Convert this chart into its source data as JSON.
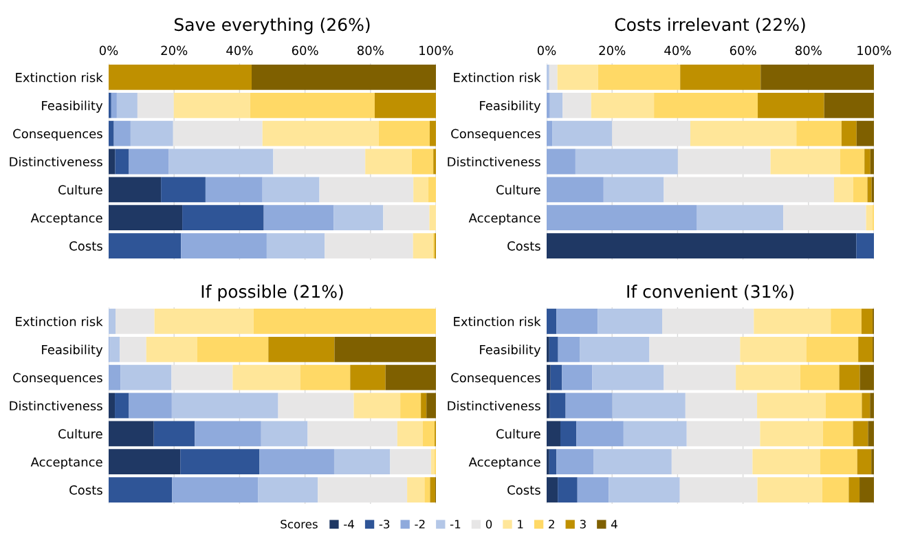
{
  "chart_data": [
    {
      "type": "bar",
      "title": "Save everything (26%)",
      "orientation": "horizontal",
      "stacked": true,
      "grid": "x",
      "legend": "bottom",
      "legend_title": "Scores",
      "categories": [
        "Extinction risk",
        "Feasibility",
        "Consequences",
        "Distinctiveness",
        "Culture",
        "Acceptance",
        "Costs"
      ],
      "xlim": [
        0,
        100
      ],
      "xticks": [
        {
          "value": 0,
          "label": "0%"
        },
        {
          "value": 20,
          "label": "20%"
        },
        {
          "value": 40,
          "label": "40%"
        },
        {
          "value": 60,
          "label": "60%"
        },
        {
          "value": 80,
          "label": "80%"
        },
        {
          "value": 100,
          "label": "100%"
        }
      ],
      "series": [
        {
          "name": "-4",
          "color": "#1f3864",
          "values": [
            0,
            0,
            0,
            2.0,
            16.0,
            22.5,
            0
          ]
        },
        {
          "name": "-3",
          "color": "#2f5597",
          "values": [
            0,
            0.8,
            1.6,
            4.2,
            13.6,
            24.9,
            22.1
          ]
        },
        {
          "name": "-2",
          "color": "#8faadc",
          "values": [
            0,
            1.7,
            5.1,
            12.2,
            17.4,
            21.4,
            26.2
          ]
        },
        {
          "name": "-1",
          "color": "#b4c7e7",
          "values": [
            0,
            6.3,
            13.0,
            31.9,
            17.4,
            15.1,
            17.7
          ]
        },
        {
          "name": "0",
          "color": "#e7e6e6",
          "values": [
            0,
            11.1,
            27.3,
            28.1,
            28.7,
            14.1,
            27.0
          ]
        },
        {
          "name": "1",
          "color": "#ffe699",
          "values": [
            0,
            23.3,
            35.5,
            14.2,
            4.6,
            2.0,
            6.1
          ]
        },
        {
          "name": "2",
          "color": "#ffd966",
          "values": [
            0,
            38.1,
            15.6,
            6.6,
            2.3,
            0,
            0.5
          ]
        },
        {
          "name": "3",
          "color": "#bf9000",
          "values": [
            43.7,
            18.7,
            1.9,
            0.8,
            0,
            0,
            0.4
          ]
        },
        {
          "name": "4",
          "color": "#7f6000",
          "values": [
            56.3,
            0,
            0,
            0,
            0,
            0,
            0
          ]
        }
      ]
    },
    {
      "type": "bar",
      "title": "Costs irrelevant (22%)",
      "orientation": "horizontal",
      "stacked": true,
      "grid": "x",
      "categories": [
        "Extinction risk",
        "Feasibility",
        "Consequences",
        "Distinctiveness",
        "Culture",
        "Acceptance",
        "Costs"
      ],
      "xlim": [
        0,
        100
      ],
      "xticks": [
        {
          "value": 0,
          "label": "0%"
        },
        {
          "value": 20,
          "label": "20%"
        },
        {
          "value": 40,
          "label": "40%"
        },
        {
          "value": 60,
          "label": "60%"
        },
        {
          "value": 80,
          "label": "80%"
        },
        {
          "value": 100,
          "label": "100%"
        }
      ],
      "series": [
        {
          "name": "-4",
          "color": "#1f3864",
          "values": [
            0,
            0,
            0,
            0,
            0,
            0,
            94.6
          ]
        },
        {
          "name": "-3",
          "color": "#2f5597",
          "values": [
            0,
            0,
            0,
            0,
            0,
            0,
            5.4
          ]
        },
        {
          "name": "-2",
          "color": "#8faadc",
          "values": [
            0,
            1.0,
            1.7,
            8.8,
            17.4,
            45.8,
            0
          ]
        },
        {
          "name": "-1",
          "color": "#b4c7e7",
          "values": [
            0.8,
            3.9,
            18.3,
            31.3,
            18.4,
            26.5,
            0
          ]
        },
        {
          "name": "0",
          "color": "#e7e6e6",
          "values": [
            2.5,
            8.7,
            23.9,
            28.3,
            52.0,
            25.3,
            0
          ]
        },
        {
          "name": "1",
          "color": "#ffe699",
          "values": [
            12.4,
            19.2,
            32.4,
            21.3,
            5.8,
            2.0,
            0
          ]
        },
        {
          "name": "2",
          "color": "#ffd966",
          "values": [
            25.1,
            31.7,
            13.8,
            7.4,
            4.4,
            0.4,
            0
          ]
        },
        {
          "name": "3",
          "color": "#bf9000",
          "values": [
            24.6,
            20.3,
            4.6,
            1.8,
            1.3,
            0,
            0
          ]
        },
        {
          "name": "4",
          "color": "#7f6000",
          "values": [
            34.6,
            15.2,
            5.3,
            1.1,
            0.7,
            0,
            0
          ]
        }
      ]
    },
    {
      "type": "bar",
      "title": "If possible (21%)",
      "orientation": "horizontal",
      "stacked": true,
      "grid": "x",
      "tick_labels": "y",
      "categories": [
        "Extinction risk",
        "Feasibility",
        "Consequences",
        "Distinctiveness",
        "Culture",
        "Acceptance",
        "Costs"
      ],
      "xlim": [
        0,
        100
      ],
      "xticks": [
        {
          "value": 0,
          "label": null
        },
        {
          "value": 20,
          "label": null
        },
        {
          "value": 40,
          "label": null
        },
        {
          "value": 60,
          "label": null
        },
        {
          "value": 80,
          "label": null
        },
        {
          "value": 100,
          "label": null
        }
      ],
      "series": [
        {
          "name": "-4",
          "color": "#1f3864",
          "values": [
            0,
            0,
            0,
            1.9,
            13.8,
            21.9,
            0
          ]
        },
        {
          "name": "-3",
          "color": "#2f5597",
          "values": [
            0,
            0,
            0,
            4.3,
            12.5,
            24.2,
            19.4
          ]
        },
        {
          "name": "-2",
          "color": "#8faadc",
          "values": [
            0,
            0.3,
            3.6,
            13.1,
            20.3,
            22.8,
            26.3
          ]
        },
        {
          "name": "-1",
          "color": "#b4c7e7",
          "values": [
            2.1,
            3.1,
            15.6,
            32.5,
            14.2,
            17.1,
            18.2
          ]
        },
        {
          "name": "0",
          "color": "#e7e6e6",
          "values": [
            11.9,
            8.1,
            18.7,
            23.1,
            27.4,
            12.5,
            27.3
          ]
        },
        {
          "name": "1",
          "color": "#ffe699",
          "values": [
            30.3,
            15.6,
            20.6,
            14.2,
            7.8,
            1.1,
            5.3
          ]
        },
        {
          "name": "2",
          "color": "#ffd966",
          "values": [
            55.7,
            21.7,
            15.3,
            6.3,
            3.6,
            0.4,
            1.7
          ]
        },
        {
          "name": "3",
          "color": "#bf9000",
          "values": [
            0,
            20.2,
            10.8,
            1.7,
            0.4,
            0,
            1.6
          ]
        },
        {
          "name": "4",
          "color": "#7f6000",
          "values": [
            0,
            31.0,
            15.4,
            2.9,
            0,
            0,
            0.2
          ]
        }
      ]
    },
    {
      "type": "bar",
      "title": "If convenient (31%)",
      "orientation": "horizontal",
      "stacked": true,
      "grid": "x",
      "tick_labels": "y",
      "categories": [
        "Extinction risk",
        "Feasibility",
        "Consequences",
        "Distinctiveness",
        "Culture",
        "Acceptance",
        "Costs"
      ],
      "xlim": [
        0,
        100
      ],
      "xticks": [
        {
          "value": 0,
          "label": null
        },
        {
          "value": 20,
          "label": null
        },
        {
          "value": 40,
          "label": null
        },
        {
          "value": 60,
          "label": null
        },
        {
          "value": 80,
          "label": null
        },
        {
          "value": 100,
          "label": null
        }
      ],
      "series": [
        {
          "name": "-4",
          "color": "#1f3864",
          "values": [
            0,
            0.8,
            1.2,
            1.0,
            4.2,
            0.8,
            3.4
          ]
        },
        {
          "name": "-3",
          "color": "#2f5597",
          "values": [
            3.0,
            2.7,
            3.5,
            4.8,
            4.9,
            2.2,
            6.0
          ]
        },
        {
          "name": "-2",
          "color": "#8faadc",
          "values": [
            12.6,
            6.6,
            9.2,
            14.3,
            14.4,
            11.3,
            9.6
          ]
        },
        {
          "name": "-1",
          "color": "#b4c7e7",
          "values": [
            19.7,
            21.3,
            21.9,
            22.3,
            19.3,
            23.9,
            21.7
          ]
        },
        {
          "name": "0",
          "color": "#e7e6e6",
          "values": [
            28.0,
            27.7,
            22.0,
            21.9,
            22.4,
            24.7,
            23.7
          ]
        },
        {
          "name": "1",
          "color": "#ffe699",
          "values": [
            23.5,
            20.2,
            19.7,
            20.9,
            19.2,
            20.6,
            19.8
          ]
        },
        {
          "name": "2",
          "color": "#ffd966",
          "values": [
            9.4,
            15.9,
            11.9,
            11.1,
            9.2,
            11.4,
            8.1
          ]
        },
        {
          "name": "3",
          "color": "#bf9000",
          "values": [
            3.4,
            4.4,
            6.3,
            2.5,
            4.6,
            4.3,
            3.3
          ]
        },
        {
          "name": "4",
          "color": "#7f6000",
          "values": [
            0.4,
            0.4,
            4.3,
            1.2,
            1.8,
            0.8,
            4.4
          ]
        }
      ]
    }
  ]
}
